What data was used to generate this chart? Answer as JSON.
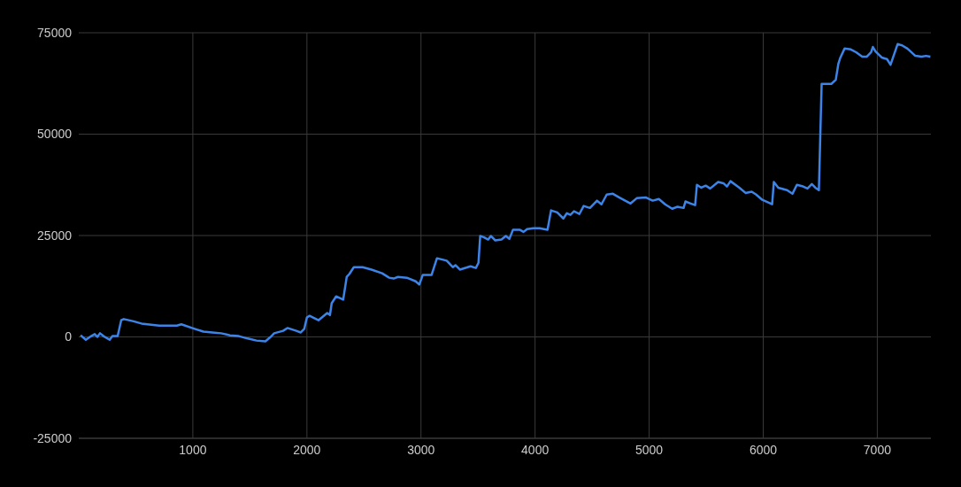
{
  "chart_data": {
    "type": "line",
    "xlim": [
      0,
      7470
    ],
    "xticks": [
      1000,
      2000,
      3000,
      4000,
      5000,
      6000,
      7000
    ],
    "ylim": [
      -25000,
      75000
    ],
    "yticks": [
      -25000,
      0,
      25000,
      50000,
      75000
    ],
    "grid": true,
    "legend": false,
    "marker": "none",
    "line_style": "solid",
    "series": [
      {
        "color": "#3c84e8",
        "x": [
          16,
          62,
          109,
          140,
          163,
          186,
          217,
          271,
          295,
          341,
          372,
          395,
          473,
          550,
          705,
          860,
          899,
          1015,
          1093,
          1171,
          1248,
          1326,
          1403,
          1481,
          1558,
          1636,
          1682,
          1713,
          1791,
          1829,
          1907,
          1946,
          1977,
          2000,
          2023,
          2101,
          2178,
          2202,
          2217,
          2256,
          2318,
          2349,
          2372,
          2411,
          2488,
          2566,
          2659,
          2721,
          2760,
          2798,
          2876,
          2954,
          2985,
          3016,
          3093,
          3140,
          3225,
          3279,
          3302,
          3341,
          3434,
          3481,
          3504,
          3519,
          3550,
          3589,
          3612,
          3651,
          3705,
          3744,
          3775,
          3806,
          3868,
          3899,
          3930,
          3985,
          4039,
          4109,
          4140,
          4194,
          4248,
          4279,
          4310,
          4341,
          4388,
          4426,
          4481,
          4543,
          4582,
          4628,
          4682,
          4736,
          4837,
          4891,
          4969,
          5031,
          5085,
          5140,
          5202,
          5248,
          5302,
          5318,
          5364,
          5403,
          5419,
          5457,
          5496,
          5535,
          5605,
          5651,
          5682,
          5713,
          5791,
          5845,
          5899,
          5938,
          5992,
          6078,
          6093,
          6132,
          6209,
          6256,
          6295,
          6349,
          6388,
          6426,
          6457,
          6488,
          6512,
          6597,
          6636,
          6659,
          6674,
          6713,
          6768,
          6814,
          6868,
          6907,
          6946,
          6961,
          6985,
          7039,
          7085,
          7116,
          7178,
          7217,
          7264,
          7334,
          7388,
          7426,
          7465
        ],
        "values": [
          400,
          -700,
          200,
          700,
          0,
          900,
          200,
          -700,
          200,
          200,
          4100,
          4400,
          3900,
          3300,
          2800,
          2800,
          3100,
          2000,
          1300,
          1100,
          900,
          400,
          200,
          -400,
          -900,
          -1100,
          0,
          900,
          1500,
          2200,
          1500,
          1100,
          2000,
          4800,
          5200,
          4100,
          5900,
          5400,
          8300,
          10000,
          9200,
          14800,
          15500,
          17200,
          17200,
          16600,
          15700,
          14600,
          14400,
          14800,
          14600,
          13700,
          12900,
          15300,
          15300,
          19400,
          18800,
          17200,
          17700,
          16600,
          17400,
          17000,
          18300,
          24900,
          24600,
          24000,
          24900,
          23800,
          24000,
          24900,
          24200,
          26400,
          26400,
          25900,
          26600,
          26800,
          26800,
          26400,
          31200,
          30700,
          29200,
          30500,
          30100,
          31000,
          30300,
          32300,
          31800,
          33600,
          32700,
          35100,
          35300,
          34400,
          32900,
          34200,
          34400,
          33600,
          34000,
          32700,
          31600,
          32100,
          31800,
          33400,
          32900,
          32500,
          37500,
          36800,
          37300,
          36600,
          38200,
          37900,
          37100,
          38400,
          36800,
          35500,
          35800,
          35100,
          33800,
          32700,
          38200,
          36800,
          36200,
          35300,
          37500,
          37100,
          36600,
          37700,
          36800,
          36200,
          62400,
          62400,
          63400,
          67400,
          68700,
          71100,
          70900,
          70200,
          69100,
          69100,
          70200,
          71500,
          70400,
          68900,
          68500,
          67100,
          72200,
          71900,
          71100,
          69300,
          69100,
          69300,
          69100
        ]
      }
    ]
  }
}
